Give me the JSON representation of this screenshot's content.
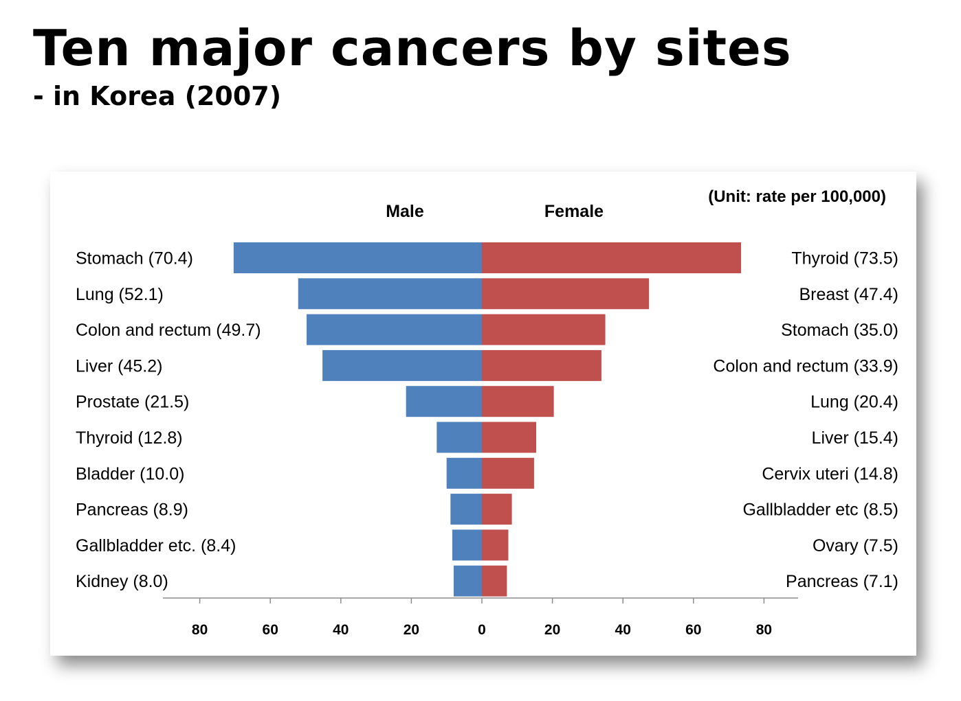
{
  "slide": {
    "title": "Ten major cancers by sites",
    "subtitle": "- in Korea (2007)"
  },
  "chart_data": {
    "type": "bar",
    "unit_note": "(Unit: rate per 100,000)",
    "xlim": [
      -90,
      90
    ],
    "ticks": [
      80,
      60,
      40,
      20,
      0,
      20,
      40,
      60,
      80
    ],
    "series": [
      {
        "name": "Male",
        "color": "#4f81bd",
        "side": "left",
        "categories": [
          "Stomach (70.4)",
          "Lung (52.1)",
          "Colon and rectum (49.7)",
          "Liver (45.2)",
          "Prostate (21.5)",
          "Thyroid (12.8)",
          "Bladder (10.0)",
          "Pancreas (8.9)",
          "Gallbladder etc. (8.4)",
          "Kidney (8.0)"
        ],
        "values": [
          70.4,
          52.1,
          49.7,
          45.2,
          21.5,
          12.8,
          10.0,
          8.9,
          8.4,
          8.0
        ]
      },
      {
        "name": "Female",
        "color": "#c0504d",
        "side": "right",
        "categories": [
          "Thyroid (73.5)",
          "Breast (47.4)",
          "Stomach (35.0)",
          "Colon and rectum (33.9)",
          "Lung (20.4)",
          "Liver (15.4)",
          "Cervix uteri (14.8)",
          "Gallbladder etc (8.5)",
          "Ovary (7.5)",
          "Pancreas (7.1)"
        ],
        "values": [
          73.5,
          47.4,
          35.0,
          33.9,
          20.4,
          15.4,
          14.8,
          8.5,
          7.5,
          7.1
        ]
      }
    ]
  }
}
